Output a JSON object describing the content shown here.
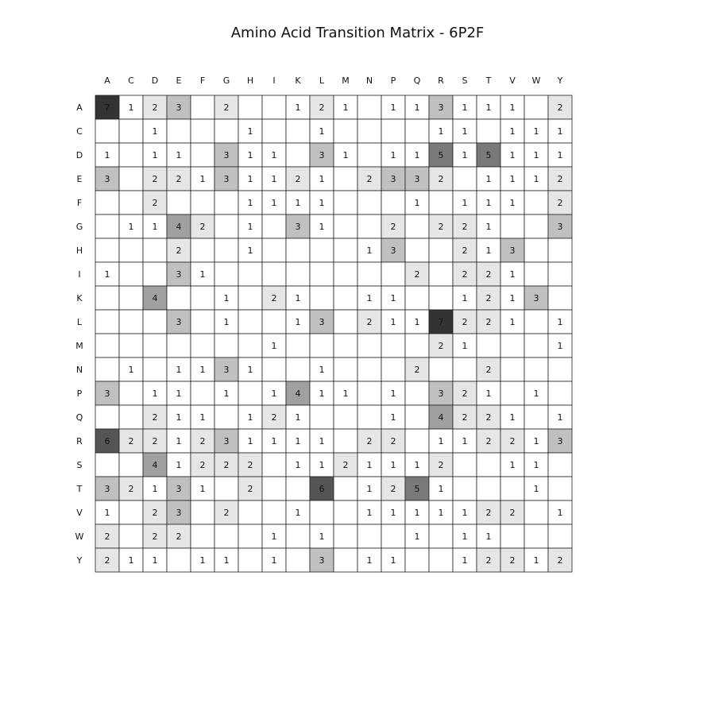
{
  "chart_data": {
    "type": "heatmap",
    "title": "Amino Acid Transition Matrix - 6P2F",
    "x_labels": [
      "A",
      "C",
      "D",
      "E",
      "F",
      "G",
      "H",
      "I",
      "K",
      "L",
      "M",
      "N",
      "P",
      "Q",
      "R",
      "S",
      "T",
      "V",
      "W",
      "Y"
    ],
    "y_labels": [
      "A",
      "C",
      "D",
      "E",
      "F",
      "G",
      "H",
      "I",
      "K",
      "L",
      "M",
      "N",
      "P",
      "Q",
      "R",
      "S",
      "T",
      "V",
      "W",
      "Y"
    ],
    "values": [
      [
        7,
        1,
        2,
        3,
        0,
        2,
        0,
        0,
        1,
        2,
        1,
        0,
        1,
        1,
        3,
        1,
        1,
        1,
        0,
        2
      ],
      [
        0,
        0,
        1,
        0,
        0,
        0,
        1,
        0,
        0,
        1,
        0,
        0,
        0,
        0,
        1,
        1,
        0,
        1,
        1,
        1
      ],
      [
        1,
        0,
        1,
        1,
        0,
        3,
        1,
        1,
        0,
        3,
        1,
        0,
        1,
        1,
        5,
        1,
        5,
        1,
        1,
        1
      ],
      [
        3,
        0,
        2,
        2,
        1,
        3,
        1,
        1,
        2,
        1,
        0,
        2,
        3,
        3,
        2,
        0,
        1,
        1,
        1,
        2
      ],
      [
        0,
        0,
        2,
        0,
        0,
        0,
        1,
        1,
        1,
        1,
        0,
        0,
        0,
        1,
        0,
        1,
        1,
        1,
        0,
        2
      ],
      [
        0,
        1,
        1,
        4,
        2,
        0,
        1,
        0,
        3,
        1,
        0,
        0,
        2,
        0,
        2,
        2,
        1,
        0,
        0,
        3
      ],
      [
        0,
        0,
        0,
        2,
        0,
        0,
        1,
        0,
        0,
        0,
        0,
        1,
        3,
        0,
        0,
        2,
        1,
        3,
        0,
        0
      ],
      [
        1,
        0,
        0,
        3,
        1,
        0,
        0,
        0,
        0,
        0,
        0,
        0,
        0,
        2,
        0,
        2,
        2,
        1,
        0,
        0
      ],
      [
        0,
        0,
        4,
        0,
        0,
        1,
        0,
        2,
        1,
        0,
        0,
        1,
        1,
        0,
        0,
        1,
        2,
        1,
        3,
        0
      ],
      [
        0,
        0,
        0,
        3,
        0,
        1,
        0,
        0,
        1,
        3,
        0,
        2,
        1,
        1,
        7,
        2,
        2,
        1,
        0,
        1
      ],
      [
        0,
        0,
        0,
        0,
        0,
        0,
        0,
        1,
        0,
        0,
        0,
        0,
        0,
        0,
        2,
        1,
        0,
        0,
        0,
        1
      ],
      [
        0,
        1,
        0,
        1,
        1,
        3,
        1,
        0,
        0,
        1,
        0,
        0,
        0,
        2,
        0,
        0,
        2,
        0,
        0,
        0
      ],
      [
        3,
        0,
        1,
        1,
        0,
        1,
        0,
        1,
        4,
        1,
        1,
        0,
        1,
        0,
        3,
        2,
        1,
        0,
        1,
        0
      ],
      [
        0,
        0,
        2,
        1,
        1,
        0,
        1,
        2,
        1,
        0,
        0,
        0,
        1,
        0,
        4,
        2,
        2,
        1,
        0,
        1
      ],
      [
        6,
        2,
        2,
        1,
        2,
        3,
        1,
        1,
        1,
        1,
        0,
        2,
        2,
        0,
        1,
        1,
        2,
        2,
        1,
        3
      ],
      [
        0,
        0,
        4,
        1,
        2,
        2,
        2,
        0,
        1,
        1,
        2,
        1,
        1,
        1,
        2,
        0,
        0,
        1,
        1,
        0
      ],
      [
        3,
        2,
        1,
        3,
        1,
        0,
        2,
        0,
        0,
        6,
        0,
        1,
        2,
        5,
        1,
        0,
        0,
        0,
        1,
        0
      ],
      [
        1,
        0,
        2,
        3,
        0,
        2,
        0,
        0,
        1,
        0,
        0,
        1,
        1,
        1,
        1,
        1,
        2,
        2,
        0,
        1
      ],
      [
        2,
        0,
        2,
        2,
        0,
        0,
        0,
        1,
        0,
        1,
        0,
        0,
        0,
        1,
        0,
        1,
        1,
        0,
        0,
        0
      ],
      [
        2,
        1,
        1,
        0,
        1,
        1,
        0,
        1,
        0,
        3,
        0,
        1,
        1,
        0,
        0,
        1,
        2,
        2,
        1,
        2
      ]
    ],
    "empty_cells_are_zero": true,
    "colormap": "grayscale",
    "color_scale": {
      "1": "#ffffff",
      "2": "#e6e6e6",
      "3": "#c0c0c0",
      "4": "#a0a0a0",
      "5": "#7a7a7a",
      "6": "#555555",
      "7": "#333333"
    },
    "grid": true
  }
}
